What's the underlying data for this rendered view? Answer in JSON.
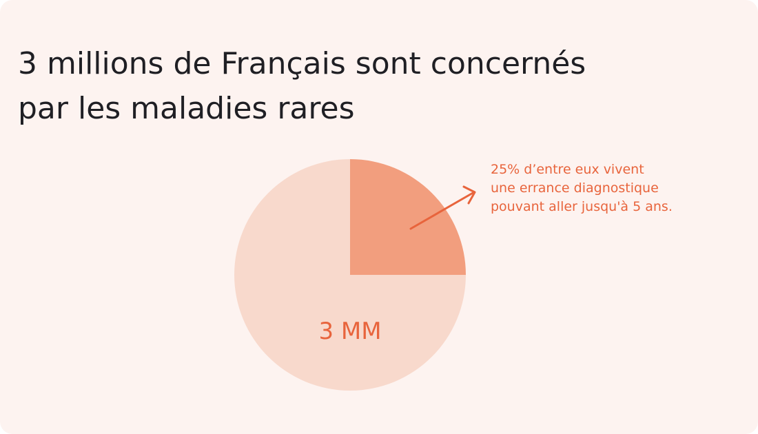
{
  "chart_data": {
    "type": "pie",
    "title": [
      "3 millions de Français sont concernés",
      "par les maladies rares"
    ],
    "values": [
      25,
      75
    ],
    "colors": [
      "#f29e7e",
      "#f8d9cc"
    ],
    "inner_label": "3 MM",
    "annotation": [
      "25% d’entre eux vivent",
      "une errance diagnostique",
      "pouvant aller jusqu'à 5 ans."
    ]
  }
}
